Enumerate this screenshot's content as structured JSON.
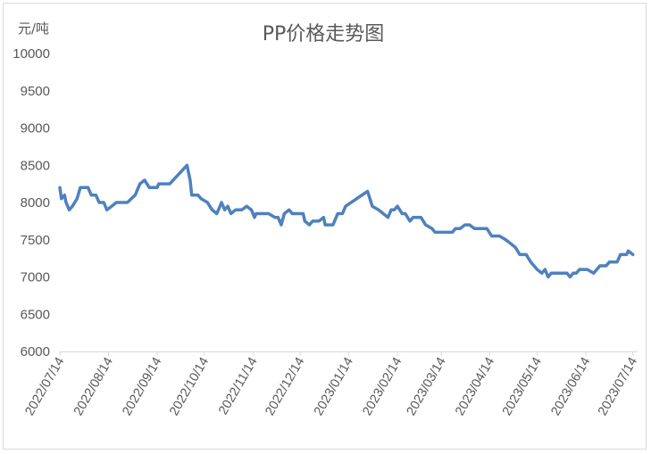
{
  "chart_data": {
    "type": "line",
    "title": "PP价格走势图",
    "ylabel": "元/吨",
    "xlabel": "",
    "ylim": [
      6000,
      10000
    ],
    "yticks": [
      6000,
      6500,
      7000,
      7500,
      8000,
      8500,
      9000,
      9500,
      10000
    ],
    "xlim": [
      "2022-07-14",
      "2023-07-17"
    ],
    "xtick_labels": [
      "2022/07/14",
      "2022/08/14",
      "2022/09/14",
      "2022/10/14",
      "2022/11/14",
      "2022/12/14",
      "2023/01/14",
      "2023/02/14",
      "2023/03/14",
      "2023/04/14",
      "2023/05/14",
      "2023/06/14",
      "2023/07/14"
    ],
    "grid": false,
    "legend": "none",
    "color": "#4f81bd",
    "series": [
      {
        "points": [
          [
            "2022-07-14",
            8200
          ],
          [
            "2022-07-15",
            8050
          ],
          [
            "2022-07-17",
            8100
          ],
          [
            "2022-07-18",
            8000
          ],
          [
            "2022-07-20",
            7900
          ],
          [
            "2022-07-22",
            7950
          ],
          [
            "2022-07-25",
            8050
          ],
          [
            "2022-07-27",
            8200
          ],
          [
            "2022-08-01",
            8200
          ],
          [
            "2022-08-03",
            8100
          ],
          [
            "2022-08-06",
            8100
          ],
          [
            "2022-08-08",
            8000
          ],
          [
            "2022-08-11",
            8000
          ],
          [
            "2022-08-13",
            7900
          ],
          [
            "2022-08-16",
            7950
          ],
          [
            "2022-08-19",
            8000
          ],
          [
            "2022-08-24",
            8000
          ],
          [
            "2022-08-26",
            8000
          ],
          [
            "2022-08-31",
            8100
          ],
          [
            "2022-09-03",
            8250
          ],
          [
            "2022-09-06",
            8300
          ],
          [
            "2022-09-09",
            8200
          ],
          [
            "2022-09-14",
            8200
          ],
          [
            "2022-09-15",
            8250
          ],
          [
            "2022-09-22",
            8250
          ],
          [
            "2022-10-03",
            8500
          ],
          [
            "2022-10-05",
            8300
          ],
          [
            "2022-10-06",
            8100
          ],
          [
            "2022-10-10",
            8100
          ],
          [
            "2022-10-12",
            8050
          ],
          [
            "2022-10-16",
            8000
          ],
          [
            "2022-10-19",
            7900
          ],
          [
            "2022-10-22",
            7850
          ],
          [
            "2022-10-25",
            8000
          ],
          [
            "2022-10-27",
            7900
          ],
          [
            "2022-10-29",
            7950
          ],
          [
            "2022-10-31",
            7850
          ],
          [
            "2022-11-03",
            7900
          ],
          [
            "2022-11-07",
            7900
          ],
          [
            "2022-11-10",
            7950
          ],
          [
            "2022-11-13",
            7900
          ],
          [
            "2022-11-15",
            7800
          ],
          [
            "2022-11-16",
            7850
          ],
          [
            "2022-11-24",
            7850
          ],
          [
            "2022-11-28",
            7800
          ],
          [
            "2022-11-30",
            7800
          ],
          [
            "2022-12-02",
            7700
          ],
          [
            "2022-12-04",
            7850
          ],
          [
            "2022-12-07",
            7900
          ],
          [
            "2022-12-09",
            7850
          ],
          [
            "2022-12-16",
            7850
          ],
          [
            "2022-12-17",
            7750
          ],
          [
            "2022-12-20",
            7700
          ],
          [
            "2022-12-22",
            7750
          ],
          [
            "2022-12-26",
            7750
          ],
          [
            "2022-12-29",
            7800
          ],
          [
            "2022-12-30",
            7700
          ],
          [
            "2023-01-04",
            7700
          ],
          [
            "2023-01-07",
            7850
          ],
          [
            "2023-01-10",
            7850
          ],
          [
            "2023-01-12",
            7950
          ],
          [
            "2023-01-26",
            8150
          ],
          [
            "2023-01-29",
            7950
          ],
          [
            "2023-02-02",
            7900
          ],
          [
            "2023-02-05",
            7850
          ],
          [
            "2023-02-08",
            7800
          ],
          [
            "2023-02-10",
            7900
          ],
          [
            "2023-02-12",
            7900
          ],
          [
            "2023-02-14",
            7950
          ],
          [
            "2023-02-17",
            7850
          ],
          [
            "2023-02-19",
            7850
          ],
          [
            "2023-02-22",
            7750
          ],
          [
            "2023-02-24",
            7800
          ],
          [
            "2023-03-01",
            7800
          ],
          [
            "2023-03-04",
            7700
          ],
          [
            "2023-03-08",
            7650
          ],
          [
            "2023-03-10",
            7600
          ],
          [
            "2023-03-21",
            7600
          ],
          [
            "2023-03-23",
            7650
          ],
          [
            "2023-03-26",
            7650
          ],
          [
            "2023-03-29",
            7700
          ],
          [
            "2023-04-01",
            7700
          ],
          [
            "2023-04-04",
            7650
          ],
          [
            "2023-04-07",
            7650
          ],
          [
            "2023-04-12",
            7650
          ],
          [
            "2023-04-15",
            7550
          ],
          [
            "2023-04-20",
            7550
          ],
          [
            "2023-04-24",
            7500
          ],
          [
            "2023-04-27",
            7450
          ],
          [
            "2023-04-30",
            7400
          ],
          [
            "2023-05-03",
            7300
          ],
          [
            "2023-05-07",
            7300
          ],
          [
            "2023-05-10",
            7200
          ],
          [
            "2023-05-14",
            7100
          ],
          [
            "2023-05-17",
            7050
          ],
          [
            "2023-05-19",
            7100
          ],
          [
            "2023-05-21",
            7000
          ],
          [
            "2023-05-23",
            7050
          ],
          [
            "2023-05-27",
            7050
          ],
          [
            "2023-06-02",
            7050
          ],
          [
            "2023-06-04",
            7000
          ],
          [
            "2023-06-06",
            7050
          ],
          [
            "2023-06-08",
            7050
          ],
          [
            "2023-06-10",
            7100
          ],
          [
            "2023-06-15",
            7100
          ],
          [
            "2023-06-19",
            7050
          ],
          [
            "2023-06-23",
            7150
          ],
          [
            "2023-06-27",
            7150
          ],
          [
            "2023-06-29",
            7200
          ],
          [
            "2023-07-04",
            7200
          ],
          [
            "2023-07-06",
            7300
          ],
          [
            "2023-07-10",
            7300
          ],
          [
            "2023-07-11",
            7350
          ],
          [
            "2023-07-14",
            7300
          ]
        ]
      }
    ]
  }
}
